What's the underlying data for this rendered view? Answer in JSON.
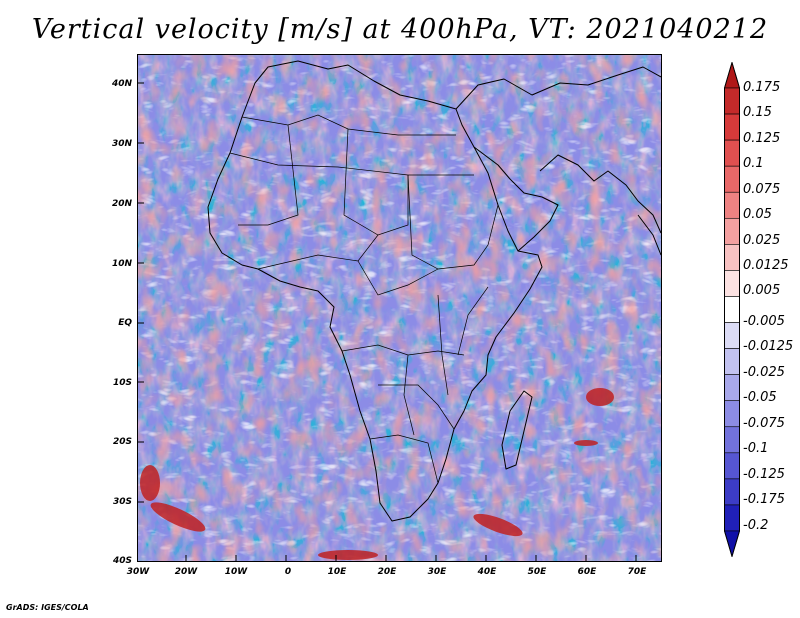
{
  "title": "Vertical velocity [m/s] at 400hPa, VT: 2021040212",
  "map": {
    "region": "Africa",
    "lat_labels": [
      "40N",
      "30N",
      "20N",
      "10N",
      "EQ",
      "10S",
      "20S",
      "30S",
      "40S"
    ],
    "lon_labels": [
      "30W",
      "20W",
      "10W",
      "0",
      "10E",
      "20E",
      "30E",
      "40E",
      "50E",
      "60E",
      "70E"
    ]
  },
  "colorbar": {
    "labels": [
      "0.175",
      "0.15",
      "0.125",
      "0.1",
      "0.075",
      "0.05",
      "0.025",
      "0.0125",
      "0.005",
      "-0.005",
      "-0.0125",
      "-0.025",
      "-0.05",
      "-0.075",
      "-0.1",
      "-0.125",
      "-0.175",
      "-0.2"
    ],
    "colors": [
      "#b01818",
      "#c42a2a",
      "#d63a3a",
      "#e05050",
      "#e86868",
      "#ee8282",
      "#f4a0a0",
      "#f8c2c2",
      "#fce2e2",
      "#ffffff",
      "#dcdcf6",
      "#c2c2f0",
      "#a8a8ea",
      "#8c8ce4",
      "#7272dc",
      "#5656d2",
      "#3c3cc6",
      "#2020b8",
      "#1010a8"
    ]
  },
  "credit": "GrADS: IGES/COLA"
}
